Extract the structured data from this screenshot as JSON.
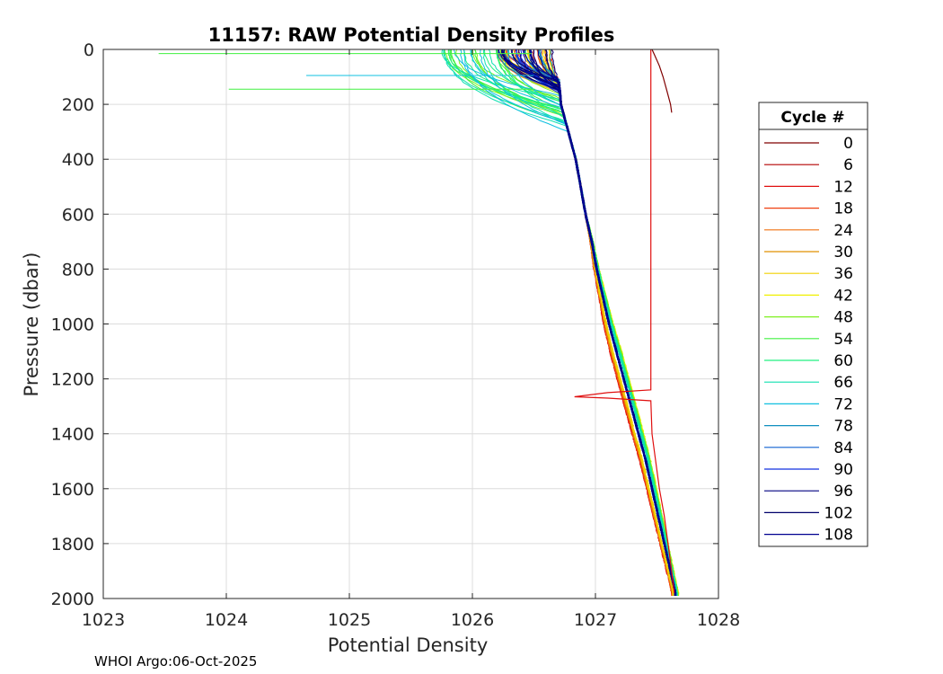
{
  "chart_data": {
    "type": "line",
    "title": "11157: RAW Potential Density Profiles",
    "xlabel": "Potential Density",
    "ylabel": "Pressure (dbar)",
    "xlim": [
      1023,
      1028
    ],
    "ylim": [
      0,
      2000
    ],
    "y_reversed": true,
    "grid": true,
    "x_ticks": [
      "1023",
      "1024",
      "1025",
      "1026",
      "1027",
      "1028"
    ],
    "y_ticks": [
      "0",
      "200",
      "400",
      "600",
      "800",
      "1000",
      "1200",
      "1400",
      "1600",
      "1800",
      "2000"
    ],
    "legend": {
      "title": "Cycle #",
      "placement": "right",
      "entries": [
        {
          "label": "0",
          "color": "#800000"
        },
        {
          "label": "6",
          "color": "#b40000"
        },
        {
          "label": "12",
          "color": "#e01010"
        },
        {
          "label": "18",
          "color": "#f04010"
        },
        {
          "label": "24",
          "color": "#f07010"
        },
        {
          "label": "30",
          "color": "#e09000"
        },
        {
          "label": "36",
          "color": "#f0d000"
        },
        {
          "label": "42",
          "color": "#f0f000"
        },
        {
          "label": "48",
          "color": "#80f020"
        },
        {
          "label": "54",
          "color": "#40f040"
        },
        {
          "label": "60",
          "color": "#20f080"
        },
        {
          "label": "66",
          "color": "#10e0b0"
        },
        {
          "label": "72",
          "color": "#10c0e0"
        },
        {
          "label": "78",
          "color": "#1090c0"
        },
        {
          "label": "84",
          "color": "#1060d0"
        },
        {
          "label": "90",
          "color": "#1030e0"
        },
        {
          "label": "96",
          "color": "#000080"
        },
        {
          "label": "102",
          "color": "#00006a"
        },
        {
          "label": "108",
          "color": "#000090"
        }
      ]
    },
    "profile_base": {
      "pressure": [
        0,
        50,
        100,
        150,
        200,
        300,
        400,
        500,
        600,
        700,
        800,
        900,
        1000,
        1100,
        1200,
        1300,
        1400,
        1500,
        1600,
        1700,
        1800,
        1900,
        1980
      ],
      "density": [
        1026.68,
        1026.68,
        1026.7,
        1026.71,
        1026.72,
        1026.78,
        1026.84,
        1026.88,
        1026.92,
        1026.97,
        1027.01,
        1027.06,
        1027.11,
        1027.17,
        1027.23,
        1027.29,
        1027.35,
        1027.41,
        1027.46,
        1027.51,
        1027.56,
        1027.61,
        1027.65
      ]
    },
    "cycle0_profile": {
      "pressure": [
        0,
        20,
        60,
        100,
        150,
        200,
        230
      ],
      "density": [
        1027.46,
        1027.48,
        1027.52,
        1027.55,
        1027.58,
        1027.61,
        1027.62
      ]
    },
    "cycle6_profile": {
      "pressure": [
        0,
        500,
        1000,
        1240,
        1250,
        1265,
        1270,
        1280,
        1400,
        1500,
        1600,
        1700,
        1800,
        1900,
        1980
      ],
      "density": [
        1027.45,
        1027.45,
        1027.45,
        1027.45,
        1027.1,
        1026.83,
        1027.1,
        1027.45,
        1027.46,
        1027.49,
        1027.52,
        1027.56,
        1027.59,
        1027.62,
        1027.64
      ]
    },
    "spikes": [
      {
        "pressure": 15,
        "density": 1023.45,
        "color": "#40f040"
      },
      {
        "pressure": 95,
        "density": 1024.65,
        "color": "#10c0e0"
      },
      {
        "pressure": 145,
        "density": 1024.02,
        "color": "#40f040"
      }
    ]
  },
  "footer": "WHOI Argo:06-Oct-2025"
}
